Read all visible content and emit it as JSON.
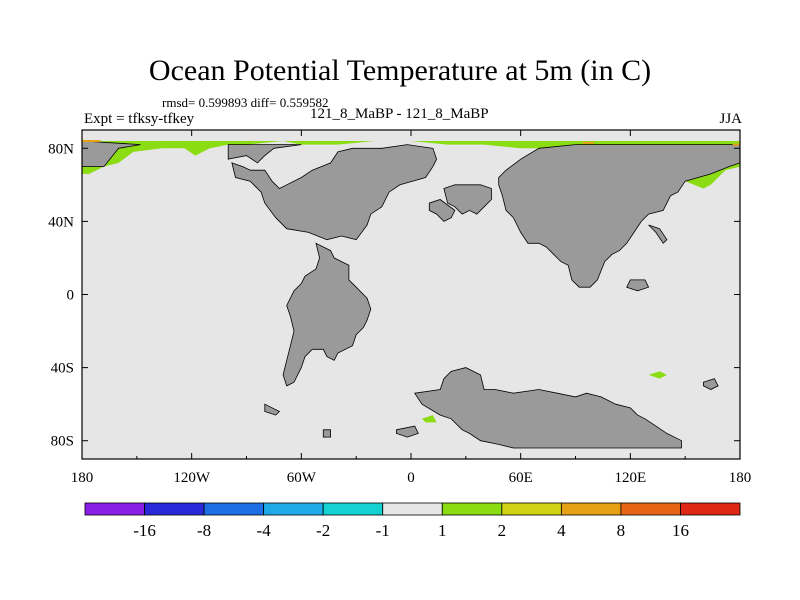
{
  "chart_data": {
    "type": "heatmap",
    "title": "Ocean Potential Temperature at 5m (in C)",
    "stats_text": "rmsd= 0.599893 diff= 0.559582",
    "left_label": "Expt = tfksy-tfkey",
    "center_label": "121_8_MaBP - 121_8_MaBP",
    "right_label": "JJA",
    "x_ticks": [
      {
        "value": -180,
        "label": "180"
      },
      {
        "value": -120,
        "label": "120W"
      },
      {
        "value": -60,
        "label": "60W"
      },
      {
        "value": 0,
        "label": "0"
      },
      {
        "value": 60,
        "label": "60E"
      },
      {
        "value": 120,
        "label": "120E"
      },
      {
        "value": 180,
        "label": "180"
      }
    ],
    "y_ticks": [
      {
        "value": 80,
        "label": "80N"
      },
      {
        "value": 40,
        "label": "40N"
      },
      {
        "value": 0,
        "label": "0"
      },
      {
        "value": -40,
        "label": "40S"
      },
      {
        "value": -80,
        "label": "80S"
      }
    ],
    "xlim": [
      -180,
      180
    ],
    "ylim": [
      -90,
      90
    ],
    "colorbar": {
      "colors": [
        "#8a1ee6",
        "#2a2ad8",
        "#1e6ee6",
        "#1eaae6",
        "#14d2d2",
        "#e6e6e6",
        "#8cdc14",
        "#d2d214",
        "#e6a014",
        "#e66414",
        "#dc2814"
      ],
      "labels": [
        "-16",
        "-8",
        "-4",
        "-2",
        "-1",
        "1",
        "2",
        "4",
        "8",
        "16"
      ]
    },
    "land_color": "#9a9a9a",
    "ocean_color": "#e6e6e6",
    "warm_color": "#8cdc14",
    "warmer_color": "#e6a014",
    "land_polygons": [
      [
        [
          -180,
          84
        ],
        [
          -180,
          70
        ],
        [
          -168,
          70
        ],
        [
          -160,
          80
        ],
        [
          -148,
          82
        ],
        [
          -180,
          84
        ]
      ],
      [
        [
          -100,
          82
        ],
        [
          -100,
          74
        ],
        [
          -90,
          76
        ],
        [
          -84,
          72
        ],
        [
          -80,
          76
        ],
        [
          -75,
          80
        ],
        [
          -60,
          82
        ],
        [
          -100,
          82
        ]
      ],
      [
        [
          -98,
          72
        ],
        [
          -96,
          64
        ],
        [
          -88,
          62
        ],
        [
          -82,
          56
        ],
        [
          -80,
          50
        ],
        [
          -74,
          42
        ],
        [
          -68,
          36
        ],
        [
          -56,
          34
        ],
        [
          -46,
          30
        ],
        [
          -38,
          32
        ],
        [
          -30,
          30
        ],
        [
          -24,
          38
        ],
        [
          -22,
          44
        ],
        [
          -16,
          48
        ],
        [
          -12,
          56
        ],
        [
          -6,
          60
        ],
        [
          8,
          64
        ],
        [
          12,
          70
        ],
        [
          14,
          74
        ],
        [
          12,
          80
        ],
        [
          -2,
          82
        ],
        [
          -16,
          80
        ],
        [
          -32,
          80
        ],
        [
          -40,
          78
        ],
        [
          -44,
          72
        ],
        [
          -54,
          68
        ],
        [
          -60,
          64
        ],
        [
          -68,
          60
        ],
        [
          -72,
          58
        ],
        [
          -76,
          62
        ],
        [
          -80,
          68
        ],
        [
          -88,
          68
        ],
        [
          -92,
          70
        ],
        [
          -98,
          72
        ]
      ],
      [
        [
          -52,
          28
        ],
        [
          -44,
          24
        ],
        [
          -42,
          20
        ],
        [
          -38,
          18
        ],
        [
          -34,
          16
        ],
        [
          -34,
          8
        ],
        [
          -30,
          4
        ],
        [
          -24,
          -2
        ],
        [
          -22,
          -8
        ],
        [
          -24,
          -14
        ],
        [
          -26,
          -18
        ],
        [
          -30,
          -22
        ],
        [
          -32,
          -28
        ],
        [
          -40,
          -32
        ],
        [
          -42,
          -36
        ],
        [
          -46,
          -34
        ],
        [
          -48,
          -30
        ],
        [
          -54,
          -30
        ],
        [
          -58,
          -34
        ],
        [
          -60,
          -40
        ],
        [
          -64,
          -48
        ],
        [
          -68,
          -50
        ],
        [
          -70,
          -44
        ],
        [
          -68,
          -36
        ],
        [
          -66,
          -28
        ],
        [
          -64,
          -20
        ],
        [
          -66,
          -12
        ],
        [
          -68,
          -6
        ],
        [
          -64,
          2
        ],
        [
          -60,
          6
        ],
        [
          -58,
          10
        ],
        [
          -52,
          14
        ],
        [
          -50,
          20
        ],
        [
          -52,
          28
        ]
      ],
      [
        [
          18,
          58
        ],
        [
          20,
          50
        ],
        [
          24,
          48
        ],
        [
          28,
          44
        ],
        [
          32,
          46
        ],
        [
          36,
          44
        ],
        [
          40,
          48
        ],
        [
          44,
          52
        ],
        [
          44,
          58
        ],
        [
          38,
          60
        ],
        [
          30,
          60
        ],
        [
          24,
          60
        ],
        [
          18,
          58
        ]
      ],
      [
        [
          10,
          46
        ],
        [
          14,
          44
        ],
        [
          18,
          40
        ],
        [
          22,
          42
        ],
        [
          24,
          46
        ],
        [
          16,
          52
        ],
        [
          10,
          50
        ],
        [
          10,
          46
        ]
      ],
      [
        [
          48,
          60
        ],
        [
          50,
          54
        ],
        [
          52,
          46
        ],
        [
          56,
          42
        ],
        [
          60,
          34
        ],
        [
          64,
          28
        ],
        [
          70,
          28
        ],
        [
          74,
          26
        ],
        [
          78,
          22
        ],
        [
          82,
          18
        ],
        [
          86,
          16
        ],
        [
          88,
          8
        ],
        [
          92,
          4
        ],
        [
          98,
          4
        ],
        [
          102,
          8
        ],
        [
          106,
          18
        ],
        [
          110,
          22
        ],
        [
          114,
          24
        ],
        [
          118,
          28
        ],
        [
          122,
          34
        ],
        [
          126,
          40
        ],
        [
          130,
          44
        ],
        [
          138,
          46
        ],
        [
          142,
          54
        ],
        [
          146,
          56
        ],
        [
          150,
          62
        ],
        [
          164,
          66
        ],
        [
          174,
          70
        ],
        [
          180,
          72
        ],
        [
          180,
          82
        ],
        [
          150,
          82
        ],
        [
          120,
          82
        ],
        [
          90,
          82
        ],
        [
          70,
          80
        ],
        [
          60,
          74
        ],
        [
          52,
          68
        ],
        [
          48,
          64
        ],
        [
          48,
          60
        ]
      ],
      [
        [
          130,
          38
        ],
        [
          134,
          34
        ],
        [
          138,
          28
        ],
        [
          140,
          30
        ],
        [
          136,
          36
        ],
        [
          130,
          38
        ]
      ],
      [
        [
          118,
          4
        ],
        [
          124,
          2
        ],
        [
          130,
          4
        ],
        [
          128,
          8
        ],
        [
          120,
          8
        ],
        [
          118,
          4
        ]
      ],
      [
        [
          2,
          -54
        ],
        [
          6,
          -60
        ],
        [
          16,
          -66
        ],
        [
          22,
          -68
        ],
        [
          28,
          -74
        ],
        [
          32,
          -76
        ],
        [
          38,
          -80
        ],
        [
          48,
          -82
        ],
        [
          56,
          -84
        ],
        [
          70,
          -84
        ],
        [
          90,
          -84
        ],
        [
          110,
          -84
        ],
        [
          130,
          -84
        ],
        [
          148,
          -84
        ],
        [
          148,
          -80
        ],
        [
          140,
          -76
        ],
        [
          134,
          -72
        ],
        [
          128,
          -68
        ],
        [
          124,
          -66
        ],
        [
          120,
          -62
        ],
        [
          112,
          -60
        ],
        [
          104,
          -56
        ],
        [
          96,
          -54
        ],
        [
          90,
          -56
        ],
        [
          80,
          -54
        ],
        [
          70,
          -52
        ],
        [
          56,
          -54
        ],
        [
          46,
          -52
        ],
        [
          40,
          -52
        ],
        [
          38,
          -44
        ],
        [
          30,
          -40
        ],
        [
          22,
          -42
        ],
        [
          18,
          -46
        ],
        [
          16,
          -52
        ],
        [
          2,
          -54
        ]
      ],
      [
        [
          -80,
          -60
        ],
        [
          -76,
          -62
        ],
        [
          -72,
          -64
        ],
        [
          -74,
          -66
        ],
        [
          -80,
          -64
        ],
        [
          -80,
          -60
        ]
      ],
      [
        [
          -48,
          -74
        ],
        [
          -44,
          -74
        ],
        [
          -44,
          -78
        ],
        [
          -48,
          -78
        ],
        [
          -48,
          -74
        ]
      ],
      [
        [
          -8,
          -74
        ],
        [
          2,
          -72
        ],
        [
          4,
          -76
        ],
        [
          -2,
          -78
        ],
        [
          -8,
          -76
        ],
        [
          -8,
          -74
        ]
      ],
      [
        [
          160,
          -48
        ],
        [
          166,
          -46
        ],
        [
          168,
          -50
        ],
        [
          164,
          -52
        ],
        [
          160,
          -50
        ],
        [
          160,
          -48
        ]
      ]
    ],
    "warm_polygons": [
      [
        [
          -180,
          84
        ],
        [
          -180,
          66
        ],
        [
          -176,
          66
        ],
        [
          -168,
          70
        ],
        [
          -160,
          72
        ],
        [
          -152,
          78
        ],
        [
          -136,
          80
        ],
        [
          -124,
          80
        ],
        [
          -118,
          76
        ],
        [
          -110,
          80
        ],
        [
          -100,
          82
        ],
        [
          -90,
          82
        ],
        [
          -70,
          84
        ],
        [
          -60,
          82
        ],
        [
          -40,
          82
        ],
        [
          -20,
          84
        ],
        [
          0,
          84
        ],
        [
          20,
          82
        ],
        [
          40,
          82
        ],
        [
          60,
          80
        ],
        [
          80,
          80
        ],
        [
          100,
          82
        ],
        [
          120,
          82
        ],
        [
          140,
          82
        ],
        [
          156,
          80
        ],
        [
          166,
          74
        ],
        [
          180,
          72
        ],
        [
          180,
          84
        ],
        [
          -180,
          84
        ]
      ],
      [
        [
          150,
          62
        ],
        [
          160,
          58
        ],
        [
          164,
          60
        ],
        [
          172,
          68
        ],
        [
          180,
          70
        ],
        [
          180,
          72
        ],
        [
          164,
          66
        ],
        [
          150,
          62
        ]
      ],
      [
        [
          130,
          -44
        ],
        [
          136,
          -42
        ],
        [
          140,
          -44
        ],
        [
          136,
          -46
        ],
        [
          130,
          -44
        ]
      ],
      [
        [
          6,
          -68
        ],
        [
          12,
          -66
        ],
        [
          14,
          -70
        ],
        [
          8,
          -70
        ],
        [
          6,
          -68
        ]
      ]
    ],
    "warmer_segments": [
      {
        "lon": [
          -180,
          -170
        ],
        "lat": 84
      },
      {
        "lon": [
          94,
          100
        ],
        "lat": 83
      },
      {
        "lon": [
          176,
          180
        ],
        "lat": 82
      }
    ]
  }
}
